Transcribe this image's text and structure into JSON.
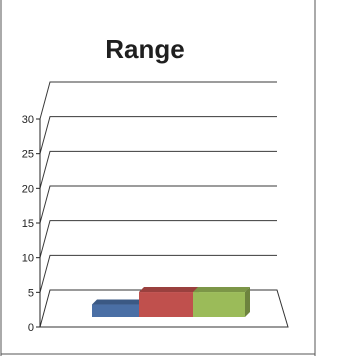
{
  "chart_data": {
    "type": "bar",
    "title": "Range",
    "xlabel": "",
    "ylabel": "",
    "ylim": [
      0,
      30
    ],
    "yticks": [
      0,
      5,
      10,
      15,
      20,
      25,
      30
    ],
    "grid": true,
    "legend": "none",
    "three_d": true,
    "categories": [
      ""
    ],
    "series": [
      {
        "values": [
          1.8
        ],
        "color": "#4a6fa5"
      },
      {
        "values": [
          3.6
        ],
        "color": "#c0504d"
      },
      {
        "values": [
          3.6
        ],
        "color": "#9bbb59"
      }
    ]
  }
}
